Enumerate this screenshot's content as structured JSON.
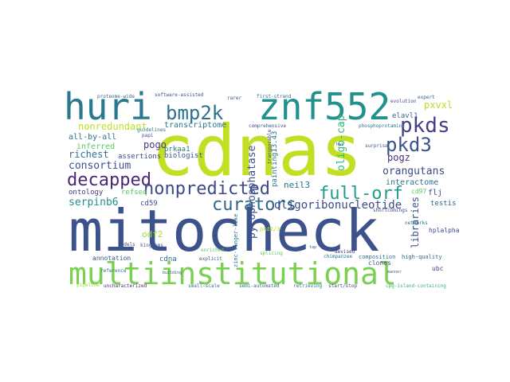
{
  "words": [
    {
      "text": "mitocheck",
      "color": "#3b528b"
    },
    {
      "text": "cdnas",
      "color": "#c2df23"
    },
    {
      "text": "multiinstitutional",
      "color": "#7ad151"
    },
    {
      "text": "huri",
      "color": "#2a788e"
    },
    {
      "text": "znf552",
      "color": "#21918c"
    },
    {
      "text": "bmp2k",
      "color": "#2c728e"
    },
    {
      "text": "pkds",
      "color": "#433e85"
    },
    {
      "text": "pkd3",
      "color": "#3b528b"
    },
    {
      "text": "decapped",
      "color": "#482878"
    },
    {
      "text": "nonpredicted",
      "color": "#3e4989"
    },
    {
      "text": "curators",
      "color": "#31688e"
    },
    {
      "text": "full-orf",
      "color": "#1f9e89"
    },
    {
      "text": "oligoribonucleotide",
      "color": "#3e4989"
    },
    {
      "text": "consortium",
      "color": "#3b528b"
    },
    {
      "text": "serpinb6",
      "color": "#21918c"
    },
    {
      "text": "pyrophosphatase",
      "color": "#3b528b"
    },
    {
      "text": "orangutans",
      "color": "#3e4989"
    },
    {
      "text": "nonredundant",
      "color": "#bddf26"
    },
    {
      "text": "transcriptome",
      "color": "#2a788e"
    },
    {
      "text": "pogo",
      "color": "#443983"
    },
    {
      "text": "richest",
      "color": "#2c728e"
    },
    {
      "text": "inferred",
      "color": "#5ec962"
    },
    {
      "text": "pxvxl",
      "color": "#b5de2b"
    },
    {
      "text": "oligo-cap",
      "color": "#35b779"
    },
    {
      "text": "libraries",
      "color": "#3b528b"
    },
    {
      "text": "neil3",
      "color": "#2c728e"
    },
    {
      "text": "pogz",
      "color": "#472d7b"
    },
    {
      "text": "interactome",
      "color": "#2c728e"
    },
    {
      "text": "elavl1",
      "color": "#31688e"
    },
    {
      "text": "all-by-all",
      "color": "#2c728e"
    },
    {
      "text": "ontology",
      "color": "#443983"
    },
    {
      "text": "refseq",
      "color": "#5ec962"
    },
    {
      "text": "cd59",
      "color": "#3e4989"
    },
    {
      "text": "odf2",
      "color": "#a0da39"
    },
    {
      "text": "cdna",
      "color": "#31688e"
    },
    {
      "text": "prkaa1",
      "color": "#2a788e"
    },
    {
      "text": "biologist",
      "color": "#3b528b"
    },
    {
      "text": "assertions",
      "color": "#3e4989"
    },
    {
      "text": "painting13.43",
      "color": "#2c728e"
    },
    {
      "text": "testis",
      "color": "#31688e"
    },
    {
      "text": "flj",
      "color": "#3e4989"
    },
    {
      "text": "cd97",
      "color": "#5ec962"
    },
    {
      "text": "annotation",
      "color": "#3b528b"
    },
    {
      "text": "multiinstitutional",
      "color": "#7ad151"
    },
    {
      "text": "pkd2/3",
      "color": "#bddf26"
    },
    {
      "text": "zinc-finger-like",
      "color": "#2a788e"
    },
    {
      "text": "splicing",
      "color": "#5ec962"
    },
    {
      "text": "hplalpha",
      "color": "#3e4989"
    },
    {
      "text": "clones",
      "color": "#3b528b"
    },
    {
      "text": "high-quality",
      "color": "#31688e"
    },
    {
      "text": "ubc",
      "color": "#3e4989"
    },
    {
      "text": "composition",
      "color": "#2c728e"
    },
    {
      "text": "devised",
      "color": "#472d7b"
    },
    {
      "text": "chimpanzee",
      "color": "#2c728e"
    },
    {
      "text": "comprehensive",
      "color": "#3b528b"
    },
    {
      "text": "transposable",
      "color": "#3e4989"
    },
    {
      "text": "phosphoprotamine",
      "color": "#2c728e"
    },
    {
      "text": "software-assisted",
      "color": "#3b528b"
    },
    {
      "text": "proteome-wide",
      "color": "#31688e"
    },
    {
      "text": "first-strand",
      "color": "#2c728e"
    },
    {
      "text": "rarer",
      "color": "#3b528b"
    },
    {
      "text": "expert",
      "color": "#31688e"
    },
    {
      "text": "evolution",
      "color": "#3b528b"
    },
    {
      "text": "papi",
      "color": "#3e4989"
    },
    {
      "text": "guidelines",
      "color": "#2a788e"
    },
    {
      "text": "surprise",
      "color": "#3b528b"
    },
    {
      "text": "networks",
      "color": "#2c728e"
    },
    {
      "text": "shortcomings",
      "color": "#3e4989"
    },
    {
      "text": "uncharacterized",
      "color": "#472d7b"
    },
    {
      "text": "small-scale",
      "color": "#2c728e"
    },
    {
      "text": "semi-automated",
      "color": "#31688e"
    },
    {
      "text": "retrieving",
      "color": "#2c728e"
    },
    {
      "text": "start/stop",
      "color": "#3e4989"
    },
    {
      "text": "cpg-island-containing",
      "color": "#35b779"
    },
    {
      "text": "explicit",
      "color": "#3b528b"
    },
    {
      "text": "reference",
      "color": "#2c728e"
    },
    {
      "text": "enriched",
      "color": "#5ec962"
    },
    {
      "text": "indels",
      "color": "#3e4989"
    },
    {
      "text": "kingdoms",
      "color": "#3b528b"
    },
    {
      "text": "pipeline",
      "color": "#a0da39"
    },
    {
      "text": "hpl",
      "color": "#3e4989"
    },
    {
      "text": "tap",
      "color": "#2c728e"
    },
    {
      "text": "building",
      "color": "#3b528b"
    },
    {
      "text": "manner",
      "color": "#31688e"
    }
  ]
}
